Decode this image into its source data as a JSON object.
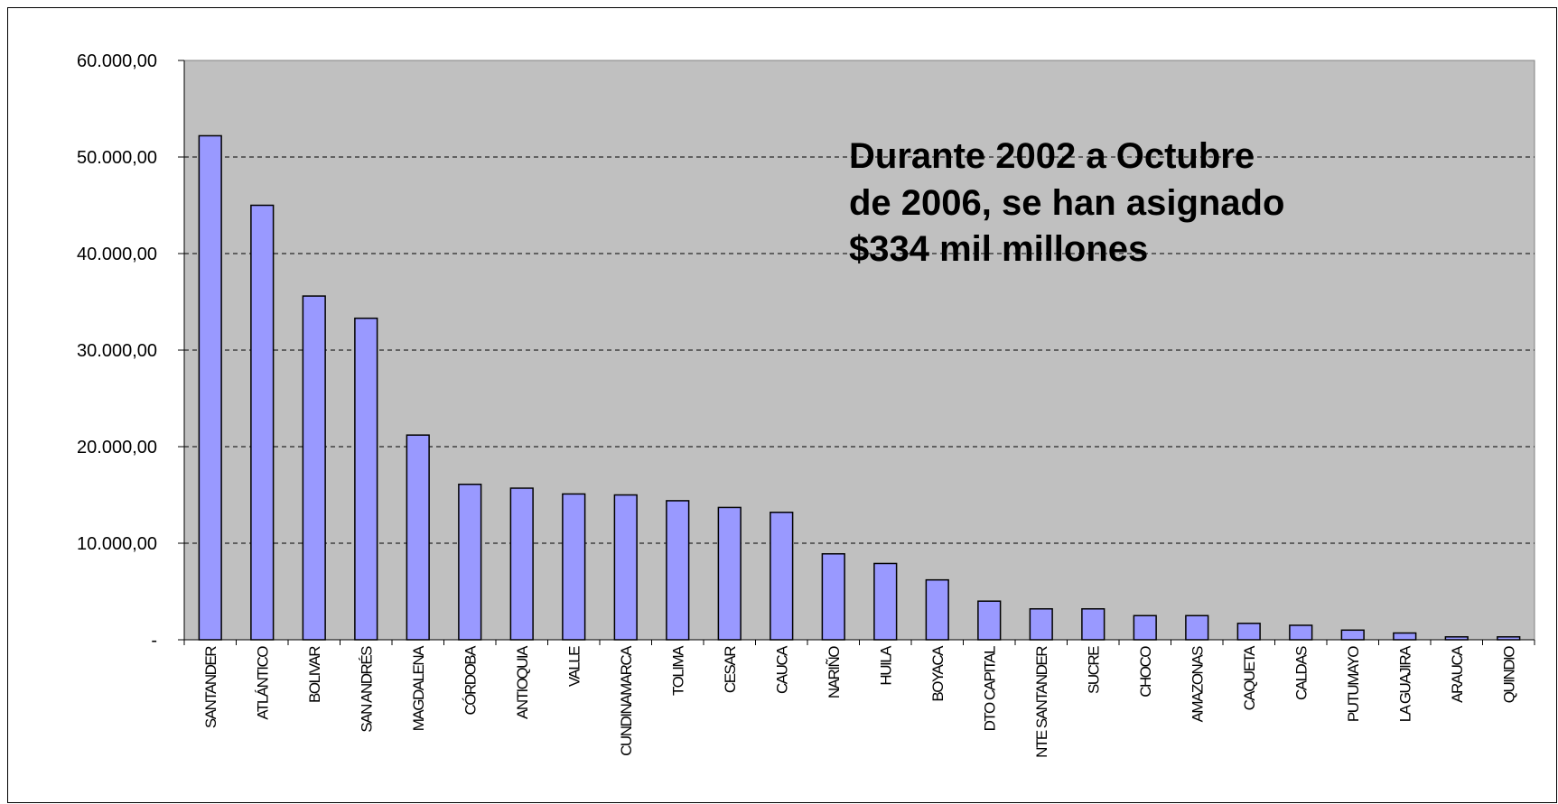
{
  "chart_data": {
    "type": "bar",
    "title": "",
    "xlabel": "",
    "ylabel": "",
    "ylim": [
      0,
      60000
    ],
    "yticks": [
      {
        "value": 0,
        "label": "-"
      },
      {
        "value": 10000,
        "label": "10.000,00"
      },
      {
        "value": 20000,
        "label": "20.000,00"
      },
      {
        "value": 30000,
        "label": "30.000,00"
      },
      {
        "value": 40000,
        "label": "40.000,00"
      },
      {
        "value": 50000,
        "label": "50.000,00"
      },
      {
        "value": 60000,
        "label": "60.000,00"
      }
    ],
    "grid": "horizontal dashed",
    "legend": "none",
    "categories": [
      "SANTANDER",
      "ATLÁNTICO",
      "BOLIVAR",
      "SAN ANDRÉS",
      "MAGDALENA",
      "CÓRDOBA",
      "ANTIOQUIA",
      "VALLE",
      "CUNDINAMARCA",
      "TOLIMA",
      "CESAR",
      "CAUCA",
      "NARIÑO",
      "HUILA",
      "BOYACA",
      "DTO CAPITAL",
      "NTE SANTANDER",
      "SUCRE",
      "CHOCO",
      "AMAZONAS",
      "CAQUETA",
      "CALDAS",
      "PUTUMAYO",
      "LA GUAJIRA",
      "ARAUCA",
      "QUINDIO"
    ],
    "values": [
      52200,
      45000,
      35600,
      33300,
      21200,
      16100,
      15700,
      15100,
      15000,
      14400,
      13700,
      13200,
      8900,
      7900,
      6200,
      4000,
      3200,
      3200,
      2500,
      2500,
      1700,
      1500,
      1000,
      700,
      300,
      300
    ],
    "annotation": [
      "Durante 2002 a Octubre",
      "de 2006, se han asignado",
      "$334 mil millones"
    ],
    "colors": {
      "bar": "#9999ff",
      "bar_stroke": "#000000",
      "plot_background": "#c0c0c0",
      "gridline": "#000000"
    }
  }
}
